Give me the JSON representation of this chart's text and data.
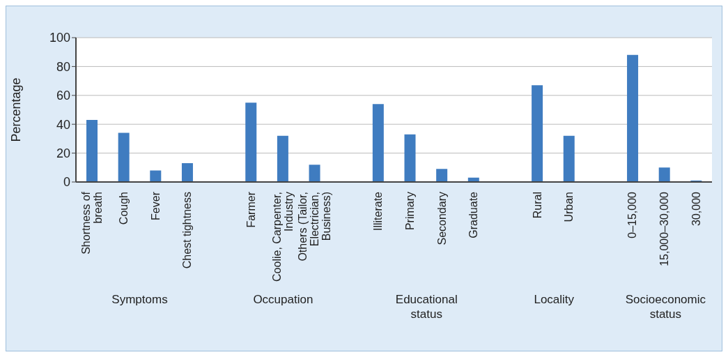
{
  "chart_data": {
    "type": "bar",
    "ylabel": "Percentage",
    "categories": [
      "Shortness of breath",
      "Cough",
      "Fever",
      "Chest tightness",
      null,
      "Farmer",
      "Coolie, Carpenter, Industry",
      "Others (Tailor, Electrician, Business)",
      null,
      "Illiterate",
      "Primary",
      "Secondary",
      "Graduate",
      null,
      "Rural",
      "Urban",
      null,
      "0–15,000",
      "15,000–30,000",
      "30,000"
    ],
    "values": [
      43,
      34,
      8,
      13,
      null,
      55,
      32,
      12,
      null,
      54,
      33,
      9,
      3,
      null,
      67,
      32,
      null,
      88,
      10,
      1
    ],
    "color": "#3f7cc0",
    "ylim": [
      0,
      100
    ],
    "yticks": [
      0,
      20,
      40,
      60,
      80,
      100
    ],
    "grid": "y",
    "annotations": [
      "Symptoms",
      "Occupation",
      "Educational status",
      "Locality",
      "Socioeconomic status"
    ]
  }
}
